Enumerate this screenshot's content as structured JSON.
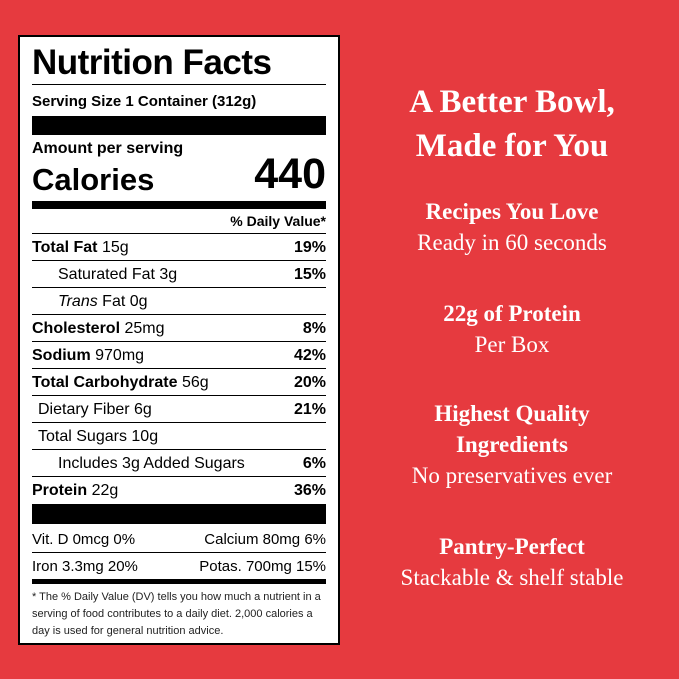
{
  "label": {
    "title": "Nutrition Facts",
    "serving_size_label": "Serving Size",
    "serving_size": "1 Container (312g)",
    "amount_per_serving": "Amount per serving",
    "calories_label": "Calories",
    "calories": 440,
    "dv_header": "% Daily Value*",
    "rows": [
      {
        "name": "Total Fat",
        "amount": "15g",
        "dv": "19%"
      },
      {
        "name": "Saturated Fat",
        "amount": "3g",
        "dv": "15%"
      },
      {
        "name_italic": "Trans",
        "name": "Fat",
        "amount": "0g"
      },
      {
        "name": "Cholesterol",
        "amount": "25mg",
        "dv": "8%"
      },
      {
        "name": "Sodium",
        "amount": "970mg",
        "dv": "42%"
      },
      {
        "name": "Total Carbohydrate",
        "amount": "56g",
        "dv": "20%"
      },
      {
        "name": "Dietary Fiber",
        "amount": "6g",
        "dv": "21%"
      },
      {
        "name": "Total Sugars",
        "amount": "10g"
      },
      {
        "name": "Includes 3g Added Sugars",
        "dv": "6%"
      },
      {
        "name": "Protein",
        "amount": "22g",
        "dv": "36%"
      }
    ],
    "vitamins": [
      [
        "Vit. D 0mcg 0%",
        "Calcium 80mg 6%"
      ],
      [
        "Iron 3.3mg 20%",
        "Potas. 700mg 15%"
      ]
    ],
    "footnote": "* The % Daily Value (DV) tells you how much a nutrient in a serving of food contributes to a daily diet. 2,000 calories a day is used for general nutrition advice."
  },
  "features": {
    "headline": [
      "A Better Bowl,",
      "Made for You"
    ],
    "items": [
      {
        "title": [
          "Recipes You Love"
        ],
        "subtitle": "Ready in 60 seconds"
      },
      {
        "title": [
          "22g of Protein"
        ],
        "subtitle": "Per Box"
      },
      {
        "title": [
          "Highest Quality",
          "Ingredients"
        ],
        "subtitle": "No preservatives ever"
      },
      {
        "title": [
          "Pantry-Perfect"
        ],
        "subtitle": "Stackable & shelf stable"
      }
    ]
  }
}
